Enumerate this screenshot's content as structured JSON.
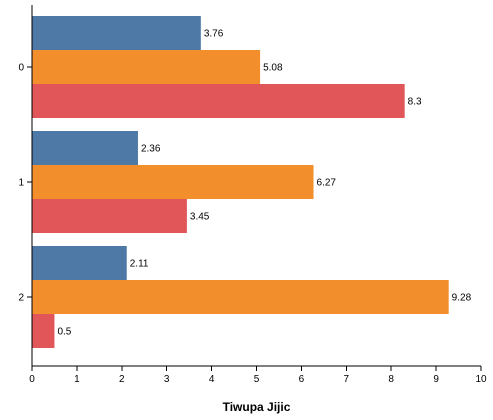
{
  "chart_data": {
    "type": "bar",
    "orientation": "horizontal",
    "categories": [
      "0",
      "1",
      "2"
    ],
    "series": [
      {
        "color": "#4e79a7",
        "values": [
          3.76,
          2.36,
          2.11
        ]
      },
      {
        "color": "#f28e2b",
        "values": [
          5.08,
          6.27,
          9.28
        ]
      },
      {
        "color": "#e15759",
        "values": [
          8.3,
          3.45,
          0.5
        ]
      }
    ],
    "data_labels": [
      [
        "3.76",
        "2.36",
        "2.11"
      ],
      [
        "5.08",
        "6.27",
        "9.28"
      ],
      [
        "8.3",
        "3.45",
        "0.5"
      ]
    ],
    "x_ticks": [
      "0",
      "1",
      "2",
      "3",
      "4",
      "5",
      "6",
      "7",
      "8",
      "9",
      "10"
    ],
    "xlim": [
      0,
      10
    ],
    "xlabel": "Tiwupa Jijic",
    "ylabel": "",
    "title": "",
    "grid": false,
    "legend": "none"
  }
}
